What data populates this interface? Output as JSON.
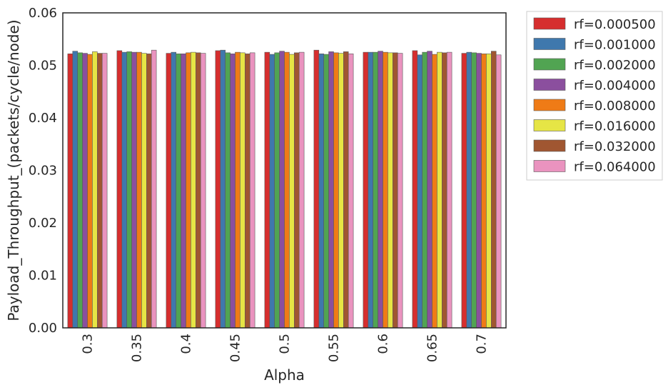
{
  "chart_data": {
    "type": "bar",
    "xlabel": "Alpha",
    "ylabel": "Payload_Throughput_(packets/cycle/node)",
    "ylim": [
      0,
      0.06
    ],
    "yticks": [
      "0.00",
      "0.01",
      "0.02",
      "0.03",
      "0.04",
      "0.05",
      "0.06"
    ],
    "grid": false,
    "legend_position": "outside-top-right",
    "categories": [
      "0.3",
      "0.35",
      "0.4",
      "0.45",
      "0.5",
      "0.55",
      "0.6",
      "0.65",
      "0.7"
    ],
    "series": [
      {
        "name": "rf=0.000500",
        "color": "#d62e2e",
        "values": [
          0.0522,
          0.0528,
          0.0523,
          0.0528,
          0.0525,
          0.0529,
          0.0525,
          0.0528,
          0.0523
        ]
      },
      {
        "name": "rf=0.001000",
        "color": "#3f78ad",
        "values": [
          0.0527,
          0.0525,
          0.0525,
          0.0529,
          0.0521,
          0.0522,
          0.0525,
          0.052,
          0.0525
        ]
      },
      {
        "name": "rf=0.002000",
        "color": "#51a452",
        "values": [
          0.0524,
          0.0526,
          0.0522,
          0.0524,
          0.0524,
          0.0521,
          0.0525,
          0.0525,
          0.0524
        ]
      },
      {
        "name": "rf=0.004000",
        "color": "#8b4f9e",
        "values": [
          0.0523,
          0.0525,
          0.0522,
          0.0522,
          0.0527,
          0.0526,
          0.0527,
          0.0527,
          0.0523
        ]
      },
      {
        "name": "rf=0.008000",
        "color": "#ef7b16",
        "values": [
          0.0521,
          0.0525,
          0.0524,
          0.0525,
          0.0525,
          0.0524,
          0.0525,
          0.0521,
          0.0522
        ]
      },
      {
        "name": "rf=0.016000",
        "color": "#e6e545",
        "values": [
          0.0526,
          0.0523,
          0.0525,
          0.0524,
          0.0521,
          0.0523,
          0.0524,
          0.0525,
          0.0522
        ]
      },
      {
        "name": "rf=0.032000",
        "color": "#a05631",
        "values": [
          0.0523,
          0.0522,
          0.0524,
          0.0522,
          0.0524,
          0.0526,
          0.0524,
          0.0524,
          0.0527
        ]
      },
      {
        "name": "rf=0.064000",
        "color": "#ea93bf",
        "values": [
          0.0523,
          0.0529,
          0.0523,
          0.0524,
          0.0525,
          0.0522,
          0.0523,
          0.0525,
          0.052
        ]
      }
    ]
  }
}
